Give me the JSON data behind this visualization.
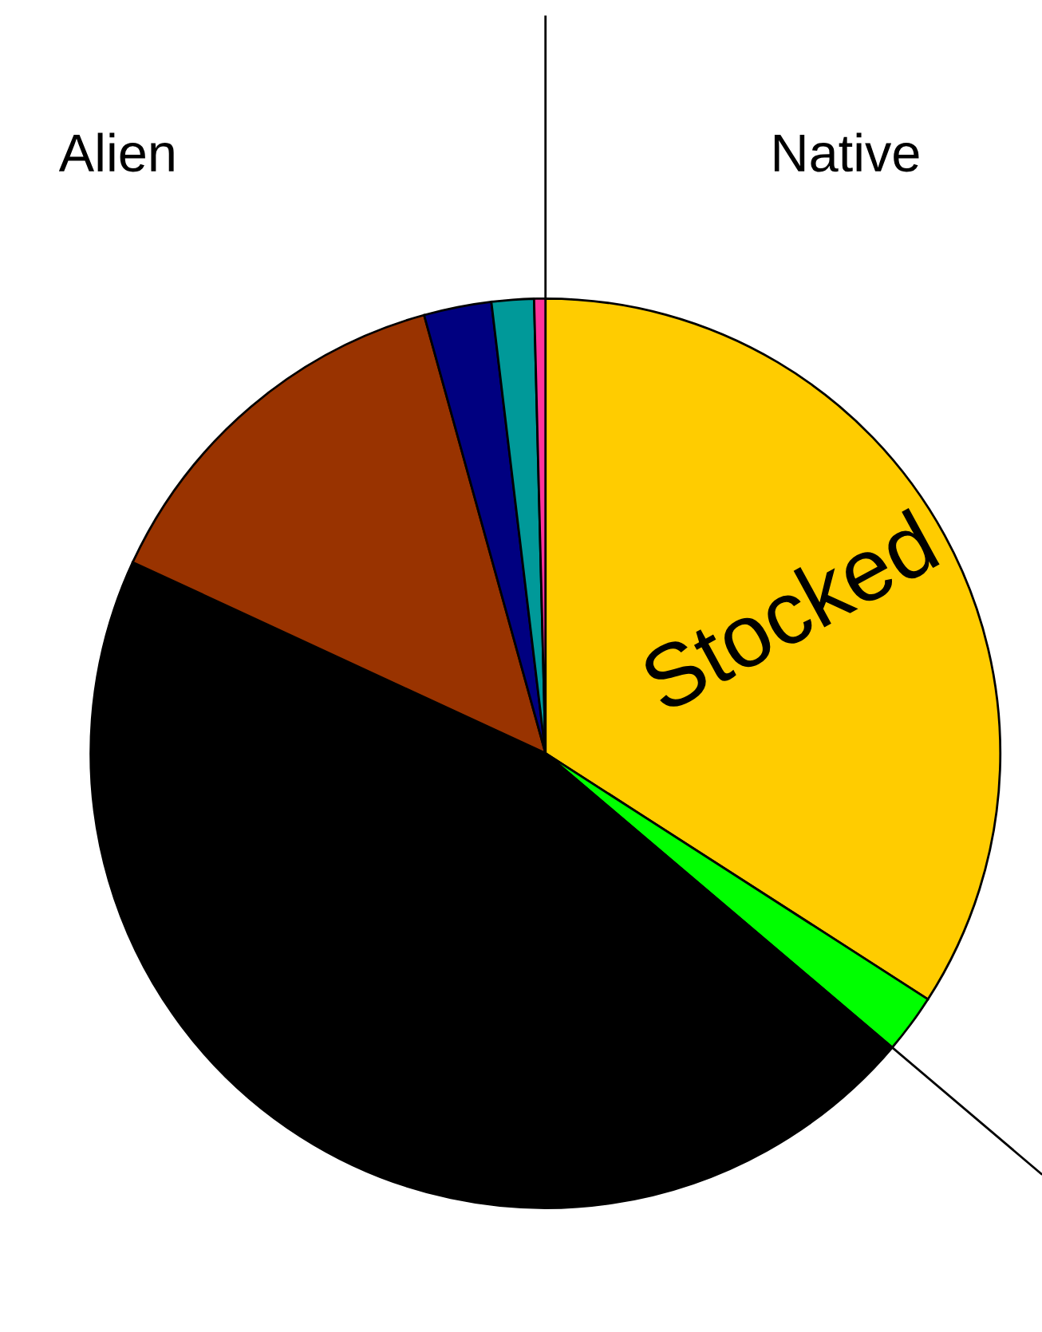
{
  "chart_data": {
    "type": "pie",
    "categories": [
      "Stocked",
      null,
      null,
      null,
      null,
      null,
      null
    ],
    "values": [
      34.1,
      2.1,
      45.7,
      13.8,
      2.4,
      1.5,
      0.4
    ],
    "colors": [
      "#ffcc00",
      "#00ff00",
      "#000000",
      "#993300",
      "#000080",
      "#009999",
      "#ff3399"
    ],
    "annotations": [
      "Alien",
      "Native"
    ]
  }
}
